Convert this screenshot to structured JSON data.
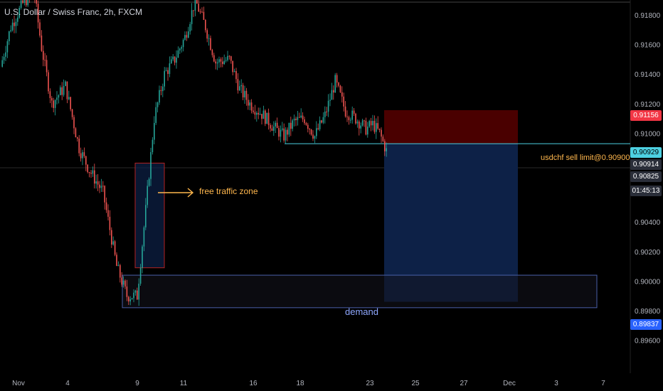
{
  "header": {
    "symbol_title": "U.S. Dollar / Swiss Franc, 2h, FXCM"
  },
  "colors": {
    "up": "#26a69a",
    "down": "#ef5350",
    "background": "#000000",
    "stop_zone": "#4a0000",
    "target_zone": "#0d2147",
    "demand_border": "#4a5fa8",
    "traffic_border": "#b22222",
    "annotation": "#ffb74d",
    "level_line": "#4dd0e1"
  },
  "annotations": {
    "free_traffic": "free traffic zone",
    "demand": "demand",
    "order": "usdchf sell limit@0.90900"
  },
  "price_tags": {
    "stop": "0.91156",
    "entry": "0.90929",
    "last_high": "0.90914",
    "last": "0.90825",
    "countdown": "01:45:13",
    "demand_low": "0.89837"
  },
  "chart_data": {
    "type": "candlestick",
    "title": "U.S. Dollar / Swiss Franc, 2h, FXCM",
    "y_ticks": [
      "0.91800",
      "0.91600",
      "0.91400",
      "0.91200",
      "0.91000",
      "0.90800",
      "0.90600",
      "0.90400",
      "0.90200",
      "0.90000",
      "0.89800",
      "0.89600"
    ],
    "x_ticks": [
      "Nov",
      "4",
      "9",
      "11",
      "16",
      "18",
      "23",
      "25",
      "27",
      "Dec",
      "3",
      "7"
    ],
    "ylim": [
      0.8955,
      0.9195
    ],
    "price_path": [
      [
        0,
        0.9145
      ],
      [
        6,
        0.9172
      ],
      [
        14,
        0.919
      ],
      [
        20,
        0.9192
      ],
      [
        24,
        0.9158
      ],
      [
        30,
        0.912
      ],
      [
        38,
        0.9132
      ],
      [
        46,
        0.909
      ],
      [
        52,
        0.9075
      ],
      [
        60,
        0.906
      ],
      [
        68,
        0.901
      ],
      [
        74,
        0.899
      ],
      [
        80,
        0.899
      ],
      [
        85,
        0.9048
      ],
      [
        90,
        0.911
      ],
      [
        96,
        0.914
      ],
      [
        102,
        0.915
      ],
      [
        108,
        0.9165
      ],
      [
        114,
        0.919
      ],
      [
        120,
        0.9172
      ],
      [
        126,
        0.9148
      ],
      [
        134,
        0.915
      ],
      [
        140,
        0.913
      ],
      [
        146,
        0.912
      ],
      [
        154,
        0.9112
      ],
      [
        160,
        0.9104
      ],
      [
        166,
        0.9098
      ],
      [
        172,
        0.9108
      ],
      [
        178,
        0.911
      ],
      [
        184,
        0.9098
      ],
      [
        190,
        0.9112
      ],
      [
        196,
        0.9135
      ],
      [
        202,
        0.9115
      ],
      [
        208,
        0.911
      ],
      [
        214,
        0.9103
      ],
      [
        218,
        0.9106
      ],
      [
        222,
        0.91
      ],
      [
        226,
        0.9088
      ]
    ],
    "zones": {
      "stop_loss": [
        0.90929,
        0.91156
      ],
      "take_profit": [
        0.8986,
        0.90929
      ],
      "demand": [
        0.8982,
        0.9004
      ],
      "free_traffic": [
        0.9009,
        0.90798
      ]
    },
    "entry_line": 0.90929,
    "grid": false,
    "legend": "none"
  }
}
